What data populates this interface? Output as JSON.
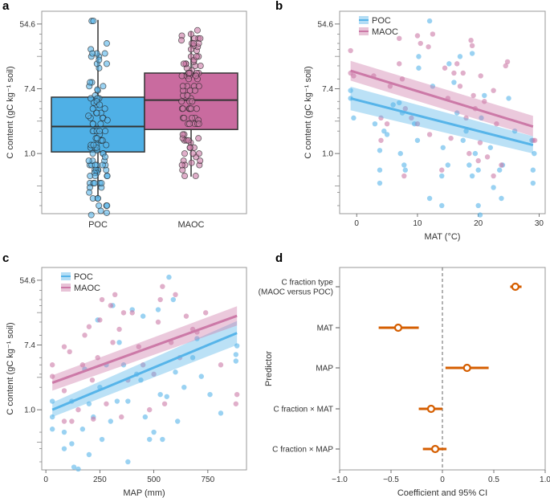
{
  "colors": {
    "poc": "#56b4e9",
    "maoc": "#cc79a7",
    "box_poc": "#4fb0e6",
    "box_maoc": "#c96b9f",
    "coef": "#d55e00",
    "frame": "#999999"
  },
  "chart_data": [
    {
      "panel": "a",
      "type": "box",
      "ylabel": "C content (gC kg⁻¹ soil)",
      "yscale": "log",
      "ylim": [
        0.156,
        81
      ],
      "yticks": [
        "1.0",
        "7.4",
        "54.6"
      ],
      "ytick_values": [
        1.0,
        7.4,
        54.6
      ],
      "categories": [
        "POC",
        "MAOC"
      ],
      "boxes": [
        {
          "name": "POC",
          "whisker_low": 0.25,
          "q1": 1.05,
          "median": 2.3,
          "q3": 5.7,
          "whisker_high": 62
        },
        {
          "name": "MAOC",
          "whisker_low": 0.49,
          "q1": 2.1,
          "median": 5.2,
          "q3": 12,
          "whisker_high": 44
        }
      ]
    },
    {
      "panel": "b",
      "type": "scatter",
      "xlabel": "MAT (°C)",
      "ylabel": "C content (gC kg⁻¹ soil)",
      "xlim": [
        -2.8,
        31
      ],
      "xticks": [
        "0",
        "10",
        "20",
        "30"
      ],
      "xtick_values": [
        0,
        10,
        20,
        30
      ],
      "yscale": "log",
      "ylim": [
        0.156,
        81
      ],
      "yticks": [
        "1.0",
        "7.4",
        "54.6"
      ],
      "ytick_values": [
        1.0,
        7.4,
        54.6
      ],
      "legend": "top-left",
      "series": [
        {
          "name": "POC",
          "fit": {
            "x": [
              -1,
              29
            ],
            "y": [
              5.5,
              1.3
            ],
            "ci_low": [
              3.8,
              1.0
            ],
            "ci_high": [
              7.9,
              1.7
            ]
          },
          "points": [
            [
              -1,
              7.0
            ],
            [
              -1,
              5.5
            ],
            [
              -0.5,
              3.0
            ],
            [
              3,
              2.5
            ],
            [
              3.8,
              1.1
            ],
            [
              3.8,
              0.6
            ],
            [
              3.8,
              0.4
            ],
            [
              4.5,
              2.0
            ],
            [
              5,
              1.8
            ],
            [
              6,
              4.5
            ],
            [
              7,
              4.8
            ],
            [
              7.2,
              1.0
            ],
            [
              7.5,
              3.5
            ],
            [
              7.8,
              0.7
            ],
            [
              8,
              0.6
            ],
            [
              9.5,
              2.5
            ],
            [
              10,
              1.5
            ],
            [
              10.2,
              20
            ],
            [
              10.2,
              14
            ],
            [
              12,
              0.25
            ],
            [
              12,
              60
            ],
            [
              12.5,
              8
            ],
            [
              14,
              0.2
            ],
            [
              14,
              0.5
            ],
            [
              14.2,
              1.2
            ],
            [
              15,
              0.7
            ],
            [
              15.2,
              16
            ],
            [
              16,
              9
            ],
            [
              16.5,
              3.5
            ],
            [
              17,
              20
            ],
            [
              17.5,
              1.5
            ],
            [
              18,
              2.0
            ],
            [
              18.5,
              0.7
            ],
            [
              19,
              0.5
            ],
            [
              19,
              22
            ],
            [
              19.5,
              1.0
            ],
            [
              20,
              0.2
            ],
            [
              20,
              0.6
            ],
            [
              20.3,
              0.15
            ],
            [
              20.5,
              3.0
            ],
            [
              21,
              6
            ],
            [
              22,
              1.2
            ],
            [
              22.5,
              0.35
            ],
            [
              23.5,
              0.6
            ],
            [
              23.8,
              0.25
            ],
            [
              24,
              0.7
            ],
            [
              25,
              5.5
            ],
            [
              26,
              2.0
            ],
            [
              29,
              0.4
            ],
            [
              29,
              0.6
            ],
            [
              29.2,
              1.0
            ],
            [
              28.8,
              1.5
            ]
          ]
        },
        {
          "name": "MAOC",
          "fit": {
            "x": [
              -1,
              29
            ],
            "y": [
              12.9,
              2.3
            ],
            "ci_low": [
              9.5,
              1.7
            ],
            "ci_high": [
              17.5,
              3.2
            ]
          },
          "points": [
            [
              -1,
              24
            ],
            [
              -1,
              12
            ],
            [
              -0.5,
              11
            ],
            [
              2.8,
              11
            ],
            [
              4,
              1.5
            ],
            [
              4,
              3.0
            ],
            [
              5,
              2.5
            ],
            [
              5.5,
              8
            ],
            [
              7,
              35
            ],
            [
              7,
              16
            ],
            [
              7.5,
              10
            ],
            [
              7.8,
              0.5
            ],
            [
              8,
              4
            ],
            [
              9,
              3
            ],
            [
              10,
              38
            ],
            [
              10.5,
              30
            ],
            [
              10,
              2.5
            ],
            [
              11.8,
              27
            ],
            [
              12,
              1.8
            ],
            [
              12.5,
              40
            ],
            [
              14,
              0.6
            ],
            [
              14.5,
              14
            ],
            [
              15,
              5.5
            ],
            [
              15.5,
              1.6
            ],
            [
              16,
              12
            ],
            [
              16.5,
              16
            ],
            [
              17,
              8
            ],
            [
              17.5,
              12
            ],
            [
              18,
              3.0
            ],
            [
              18.5,
              1.0
            ],
            [
              18.8,
              33
            ],
            [
              19,
              28
            ],
            [
              19.2,
              6
            ],
            [
              19.5,
              4
            ],
            [
              20,
              0.8
            ],
            [
              20.3,
              1.4
            ],
            [
              20.4,
              11
            ],
            [
              21,
              5
            ],
            [
              21.5,
              0.9
            ],
            [
              22.5,
              7
            ],
            [
              22.5,
              0.5
            ],
            [
              23,
              2.5
            ],
            [
              23.8,
              0.7
            ],
            [
              24.5,
              15
            ],
            [
              24.8,
              17
            ],
            [
              29,
              1.5
            ],
            [
              29.3,
              1.5
            ]
          ]
        }
      ]
    },
    {
      "panel": "c",
      "type": "scatter",
      "xlabel": "MAP (mm)",
      "ylabel": "C content (gC kg⁻¹ soil)",
      "xlim": [
        -19,
        929
      ],
      "xticks": [
        "0",
        "250",
        "500",
        "750"
      ],
      "xtick_values": [
        0,
        250,
        500,
        750
      ],
      "yscale": "log",
      "ylim": [
        0.156,
        81
      ],
      "yticks": [
        "1.0",
        "7.4",
        "54.6"
      ],
      "ytick_values": [
        1.0,
        7.4,
        54.6
      ],
      "legend": "top-left",
      "series": [
        {
          "name": "POC",
          "fit": {
            "x": [
              30,
              885
            ],
            "y": [
              1.0,
              10.7
            ],
            "ci_low": [
              0.8,
              7.4
            ],
            "ci_high": [
              1.25,
              15.5
            ]
          },
          "points": [
            [
              30,
              1.3
            ],
            [
              30,
              0.8
            ],
            [
              30,
              0.55
            ],
            [
              85,
              0.5
            ],
            [
              85,
              0.3
            ],
            [
              120,
              1.3
            ],
            [
              120,
              0.35
            ],
            [
              130,
              0.17
            ],
            [
              150,
              0.16
            ],
            [
              170,
              0.55
            ],
            [
              180,
              3.5
            ],
            [
              200,
              0.25
            ],
            [
              200,
              1.2
            ],
            [
              220,
              0.8
            ],
            [
              240,
              16
            ],
            [
              250,
              2.0
            ],
            [
              260,
              0.4
            ],
            [
              280,
              4
            ],
            [
              300,
              0.7
            ],
            [
              310,
              25
            ],
            [
              330,
              1.3
            ],
            [
              340,
              8
            ],
            [
              360,
              4
            ],
            [
              380,
              0.2
            ],
            [
              380,
              1.3
            ],
            [
              400,
              22
            ],
            [
              420,
              3
            ],
            [
              440,
              2.5
            ],
            [
              450,
              18
            ],
            [
              460,
              0.8
            ],
            [
              480,
              0.4
            ],
            [
              500,
              0.5
            ],
            [
              520,
              22
            ],
            [
              530,
              1.6
            ],
            [
              540,
              0.4
            ],
            [
              560,
              1.5
            ],
            [
              570,
              60
            ],
            [
              590,
              30
            ],
            [
              600,
              3.2
            ],
            [
              610,
              0.7
            ],
            [
              640,
              2.0
            ],
            [
              680,
              5
            ],
            [
              700,
              9
            ],
            [
              720,
              2.8
            ],
            [
              760,
              1.6
            ],
            [
              810,
              0.9
            ],
            [
              880,
              4.5
            ],
            [
              885,
              7.2
            ],
            [
              880,
              5.5
            ]
          ]
        },
        {
          "name": "MAOC",
          "fit": {
            "x": [
              30,
              885
            ],
            "y": [
              2.3,
              18.2
            ],
            "ci_low": [
              1.8,
              13.5
            ],
            "ci_high": [
              2.9,
              24.5
            ]
          },
          "points": [
            [
              30,
              4
            ],
            [
              30,
              2.8
            ],
            [
              85,
              7
            ],
            [
              85,
              1.8
            ],
            [
              85,
              0.7
            ],
            [
              110,
              6
            ],
            [
              120,
              0.7
            ],
            [
              150,
              1.0
            ],
            [
              170,
              4
            ],
            [
              180,
              10
            ],
            [
              200,
              13
            ],
            [
              215,
              2.5
            ],
            [
              220,
              0.75
            ],
            [
              240,
              5
            ],
            [
              250,
              16
            ],
            [
              260,
              30
            ],
            [
              280,
              1.2
            ],
            [
              300,
              25
            ],
            [
              310,
              8
            ],
            [
              320,
              35
            ],
            [
              340,
              12
            ],
            [
              350,
              0.8
            ],
            [
              360,
              20
            ],
            [
              380,
              2.5
            ],
            [
              400,
              20
            ],
            [
              430,
              7
            ],
            [
              450,
              4
            ],
            [
              480,
              1.0
            ],
            [
              500,
              3
            ],
            [
              520,
              15
            ],
            [
              530,
              30
            ],
            [
              540,
              45
            ],
            [
              550,
              1.2
            ],
            [
              580,
              8
            ],
            [
              600,
              35
            ],
            [
              620,
              5
            ],
            [
              650,
              18
            ],
            [
              680,
              12
            ],
            [
              700,
              11
            ],
            [
              740,
              20
            ],
            [
              810,
              4
            ],
            [
              880,
              1.2
            ],
            [
              885,
              1.6
            ]
          ]
        }
      ]
    },
    {
      "panel": "d",
      "type": "forest",
      "xlabel": "Coefficient and 95% CI",
      "ylabel": "Predictor",
      "xlim": [
        -1.0,
        1.0
      ],
      "xticks": [
        "−1.0",
        "−0.5",
        "0",
        "0.5",
        "1.0"
      ],
      "xtick_values": [
        -1.0,
        -0.5,
        0,
        0.5,
        1.0
      ],
      "reference_line": 0,
      "rows": [
        {
          "label": [
            "C fraction type",
            "(MAOC versus POC)"
          ],
          "estimate": 0.71,
          "ci": [
            0.66,
            0.77
          ]
        },
        {
          "label": [
            "MAT"
          ],
          "estimate": -0.43,
          "ci": [
            -0.62,
            -0.23
          ]
        },
        {
          "label": [
            "MAP"
          ],
          "estimate": 0.24,
          "ci": [
            0.03,
            0.45
          ]
        },
        {
          "label": [
            "C fraction × MAT"
          ],
          "estimate": -0.11,
          "ci": [
            -0.23,
            0.0
          ]
        },
        {
          "label": [
            "C fraction × MAP"
          ],
          "estimate": -0.07,
          "ci": [
            -0.19,
            0.04
          ]
        }
      ]
    }
  ],
  "panel_labels": [
    "a",
    "b",
    "c",
    "d"
  ]
}
